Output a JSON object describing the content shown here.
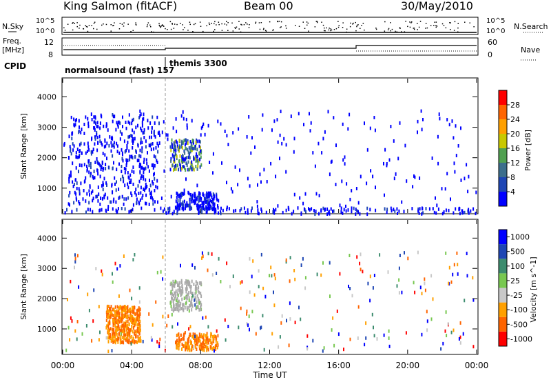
{
  "header": {
    "station": "King Salmon (fitACF)",
    "beam": "Beam 00",
    "date": "30/May/2010"
  },
  "panels": {
    "nsky": {
      "label": "N.Sky",
      "right_label": "N.Search",
      "ticks": [
        "10^5",
        "10^0"
      ]
    },
    "freq": {
      "label_line1": "Freq.",
      "label_line2": "[MHz]",
      "right_label": "Nave",
      "left_ticks": [
        "12",
        "8"
      ],
      "right_ticks": [
        "60",
        "0"
      ]
    },
    "cpid": {
      "label": "CPID",
      "modes": [
        "normalsound (fast) 157",
        "themis 3300"
      ]
    }
  },
  "colors": {
    "power": [
      "#0000ff",
      "#1e46b4",
      "#3c6e8c",
      "#50a050",
      "#c8c800",
      "#ffa000",
      "#ff6400",
      "#ff0000"
    ],
    "velocity": [
      "#ff0000",
      "#ff6400",
      "#ffa000",
      "#c8c8c8",
      "#78c850",
      "#3c8c6e",
      "#1e46b4",
      "#0000ff"
    ],
    "ground": "#aaaaaa"
  },
  "chart_data": [
    {
      "type": "heatmap",
      "title": "Power",
      "xlabel": "Time UT",
      "ylabel": "Slant Range [km]",
      "xlim": [
        "00:00",
        "24:00"
      ],
      "ylim": [
        180,
        4600
      ],
      "x_ticks": [
        "00:00",
        "04:00",
        "08:00",
        "12:00",
        "16:00",
        "20:00",
        "00:00"
      ],
      "y_ticks": [
        "1000",
        "2000",
        "3000",
        "4000"
      ],
      "colorbar": {
        "label": "Power [dB]",
        "ticks": [
          "4",
          "8",
          "12",
          "16",
          "20",
          "24",
          "28"
        ]
      },
      "scatter_regions": [
        {
          "t_start": 0.3,
          "t_end": 5.6,
          "r_min": 500,
          "r_max": 3500,
          "level": "low"
        },
        {
          "t_start": 6.2,
          "t_end": 8.0,
          "r_min": 1650,
          "r_max": 2650,
          "level": "medium"
        },
        {
          "t_start": 6.5,
          "t_end": 9.0,
          "r_min": 350,
          "r_max": 900,
          "level": "low"
        },
        {
          "t_start": 0.0,
          "t_end": 24.0,
          "r_min": 200,
          "r_max": 400,
          "level": "low"
        }
      ]
    },
    {
      "type": "heatmap",
      "title": "Velocity",
      "xlabel": "Time UT",
      "ylabel": "Slant Range [km]",
      "xlim": [
        "00:00",
        "24:00"
      ],
      "ylim": [
        180,
        4600
      ],
      "x_ticks": [
        "00:00",
        "04:00",
        "08:00",
        "12:00",
        "16:00",
        "20:00",
        "00:00"
      ],
      "y_ticks": [
        "1000",
        "2000",
        "3000",
        "4000"
      ],
      "colorbar": {
        "label": "Velocity [m s^-1]",
        "ticks": [
          "1000",
          "500",
          "100",
          "25",
          "-25",
          "-100",
          "-500",
          "-1000"
        ]
      },
      "scatter_regions": [
        {
          "t_start": 6.2,
          "t_end": 8.0,
          "r_min": 1650,
          "r_max": 2650,
          "level": "ground"
        },
        {
          "t_start": 6.5,
          "t_end": 9.0,
          "r_min": 350,
          "r_max": 900,
          "level": "negative"
        },
        {
          "t_start": 2.5,
          "t_end": 4.5,
          "r_min": 600,
          "r_max": 1800,
          "level": "negative"
        }
      ]
    }
  ]
}
